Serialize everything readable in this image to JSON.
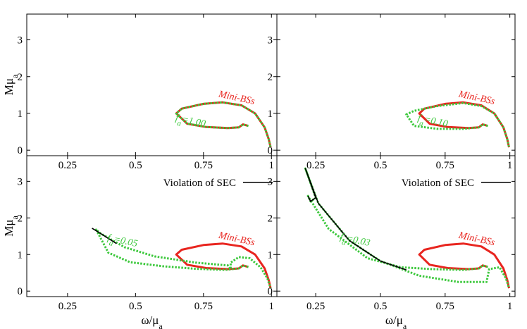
{
  "chart_data": {
    "type": "line",
    "panels": [
      {
        "id": "top-left",
        "xlabel": "",
        "ylabel": "Mμa",
        "xlim": [
          0.1,
          1.02
        ],
        "ylim": [
          -0.15,
          3.7
        ],
        "xticks": [
          "0.25",
          "0.5",
          "0.75",
          "1"
        ],
        "yticks": [
          "0",
          "1",
          "2",
          "3"
        ],
        "legend": {
          "label": "Violation of SEC",
          "color": "#000000"
        },
        "annotations": [
          {
            "text": "Mini-BSs",
            "color": "#e8251f"
          },
          {
            "text": "f",
            "sub": "a",
            "suffix": "=1.00",
            "color": "#3cc83c"
          }
        ],
        "series": [
          {
            "color": "#e8251f",
            "style": "solid",
            "points": [
              [
                0.915,
                0.66
              ],
              [
                0.895,
                0.7
              ],
              [
                0.88,
                0.62
              ],
              [
                0.84,
                0.6
              ],
              [
                0.76,
                0.63
              ],
              [
                0.69,
                0.72
              ],
              [
                0.65,
                1.0
              ],
              [
                0.67,
                1.13
              ],
              [
                0.75,
                1.26
              ],
              [
                0.82,
                1.3
              ],
              [
                0.89,
                1.22
              ],
              [
                0.94,
                1.0
              ],
              [
                0.975,
                0.62
              ],
              [
                0.99,
                0.3
              ],
              [
                0.997,
                0.08
              ]
            ]
          },
          {
            "color": "#3cc83c",
            "style": "dotted",
            "points": [
              [
                0.915,
                0.66
              ],
              [
                0.895,
                0.7
              ],
              [
                0.88,
                0.62
              ],
              [
                0.84,
                0.6
              ],
              [
                0.76,
                0.63
              ],
              [
                0.69,
                0.72
              ],
              [
                0.65,
                1.0
              ],
              [
                0.67,
                1.13
              ],
              [
                0.75,
                1.26
              ],
              [
                0.82,
                1.3
              ],
              [
                0.89,
                1.22
              ],
              [
                0.94,
                1.0
              ],
              [
                0.975,
                0.62
              ],
              [
                0.99,
                0.3
              ],
              [
                0.997,
                0.08
              ]
            ]
          }
        ]
      },
      {
        "id": "top-right",
        "xlabel": "",
        "ylabel": "",
        "xlim": [
          0.1,
          1.02
        ],
        "ylim": [
          -0.15,
          3.7
        ],
        "xticks": [
          "0.25",
          "0.5",
          "0.75",
          "1"
        ],
        "yticks": [
          "0",
          "1",
          "2",
          "3"
        ],
        "legend": {
          "label": "Violation of SEC",
          "color": "#000000"
        },
        "annotations": [
          {
            "text": "Mini-BSs",
            "color": "#e8251f"
          },
          {
            "text": "f",
            "sub": "a",
            "suffix": "=0.10",
            "color": "#3cc83c"
          }
        ],
        "series": [
          {
            "color": "#e8251f",
            "style": "solid",
            "points": [
              [
                0.915,
                0.66
              ],
              [
                0.895,
                0.7
              ],
              [
                0.88,
                0.62
              ],
              [
                0.84,
                0.6
              ],
              [
                0.76,
                0.63
              ],
              [
                0.69,
                0.72
              ],
              [
                0.65,
                1.0
              ],
              [
                0.67,
                1.13
              ],
              [
                0.75,
                1.26
              ],
              [
                0.82,
                1.3
              ],
              [
                0.89,
                1.22
              ],
              [
                0.94,
                1.0
              ],
              [
                0.975,
                0.62
              ],
              [
                0.99,
                0.3
              ],
              [
                0.997,
                0.08
              ]
            ]
          },
          {
            "color": "#3cc83c",
            "style": "dotted",
            "points": [
              [
                0.915,
                0.66
              ],
              [
                0.895,
                0.7
              ],
              [
                0.88,
                0.62
              ],
              [
                0.82,
                0.58
              ],
              [
                0.72,
                0.58
              ],
              [
                0.63,
                0.66
              ],
              [
                0.6,
                0.97
              ],
              [
                0.63,
                1.07
              ],
              [
                0.72,
                1.2
              ],
              [
                0.82,
                1.28
              ],
              [
                0.89,
                1.2
              ],
              [
                0.94,
                1.0
              ],
              [
                0.975,
                0.62
              ],
              [
                0.99,
                0.3
              ],
              [
                0.997,
                0.08
              ]
            ]
          }
        ]
      },
      {
        "id": "bottom-left",
        "xlabel": "ω/μa",
        "ylabel": "Mμa",
        "xlim": [
          0.1,
          1.02
        ],
        "ylim": [
          -0.15,
          3.7
        ],
        "xticks": [
          "0.25",
          "0.5",
          "0.75",
          "1"
        ],
        "yticks": [
          "0",
          "1",
          "2",
          "3"
        ],
        "annotations": [
          {
            "text": "Mini-BSs",
            "color": "#e8251f"
          },
          {
            "text": "f",
            "sub": "a",
            "suffix": "=0.05",
            "color": "#3cc83c"
          }
        ],
        "series": [
          {
            "color": "#e8251f",
            "style": "solid",
            "points": [
              [
                0.915,
                0.66
              ],
              [
                0.895,
                0.7
              ],
              [
                0.88,
                0.62
              ],
              [
                0.84,
                0.6
              ],
              [
                0.76,
                0.63
              ],
              [
                0.69,
                0.72
              ],
              [
                0.65,
                1.0
              ],
              [
                0.67,
                1.13
              ],
              [
                0.75,
                1.26
              ],
              [
                0.82,
                1.3
              ],
              [
                0.89,
                1.22
              ],
              [
                0.94,
                1.0
              ],
              [
                0.975,
                0.62
              ],
              [
                0.99,
                0.3
              ],
              [
                0.997,
                0.08
              ]
            ]
          },
          {
            "color": "#3cc83c",
            "style": "dotted",
            "points": [
              [
                0.915,
                0.66
              ],
              [
                0.895,
                0.7
              ],
              [
                0.88,
                0.62
              ],
              [
                0.83,
                0.58
              ],
              [
                0.72,
                0.61
              ],
              [
                0.6,
                0.68
              ],
              [
                0.48,
                0.79
              ],
              [
                0.4,
                1.05
              ],
              [
                0.355,
                1.68
              ],
              [
                0.37,
                1.58
              ],
              [
                0.46,
                1.2
              ],
              [
                0.57,
                0.95
              ],
              [
                0.72,
                0.78
              ],
              [
                0.84,
                0.7
              ],
              [
                0.85,
                0.6
              ],
              [
                0.85,
                0.78
              ],
              [
                0.88,
                0.93
              ],
              [
                0.92,
                0.9
              ],
              [
                0.96,
                0.65
              ],
              [
                0.985,
                0.35
              ],
              [
                0.997,
                0.08
              ]
            ]
          },
          {
            "color": "#000000",
            "style": "solid",
            "points": [
              [
                0.34,
                1.72
              ],
              [
                0.37,
                1.58
              ],
              [
                0.43,
                1.3
              ]
            ]
          }
        ]
      },
      {
        "id": "bottom-right",
        "xlabel": "ω/μa",
        "ylabel": "",
        "xlim": [
          0.1,
          1.02
        ],
        "ylim": [
          -0.15,
          3.7
        ],
        "xticks": [
          "0.25",
          "0.5",
          "0.75",
          "1"
        ],
        "yticks": [
          "0",
          "1",
          "2",
          "3"
        ],
        "annotations": [
          {
            "text": "Mini-BSs",
            "color": "#e8251f"
          },
          {
            "text": "f",
            "sub": "a",
            "suffix": "=0.03",
            "color": "#3cc83c"
          }
        ],
        "series": [
          {
            "color": "#e8251f",
            "style": "solid",
            "points": [
              [
                0.915,
                0.66
              ],
              [
                0.895,
                0.7
              ],
              [
                0.88,
                0.62
              ],
              [
                0.84,
                0.6
              ],
              [
                0.76,
                0.63
              ],
              [
                0.69,
                0.72
              ],
              [
                0.65,
                1.0
              ],
              [
                0.67,
                1.13
              ],
              [
                0.75,
                1.26
              ],
              [
                0.82,
                1.3
              ],
              [
                0.89,
                1.22
              ],
              [
                0.94,
                1.0
              ],
              [
                0.975,
                0.62
              ],
              [
                0.99,
                0.3
              ],
              [
                0.997,
                0.08
              ]
            ]
          },
          {
            "color": "#3cc83c",
            "style": "dotted",
            "points": [
              [
                0.915,
                0.66
              ],
              [
                0.895,
                0.7
              ],
              [
                0.88,
                0.62
              ],
              [
                0.82,
                0.58
              ],
              [
                0.7,
                0.6
              ],
              [
                0.58,
                0.65
              ],
              [
                0.45,
                0.9
              ],
              [
                0.3,
                1.7
              ],
              [
                0.22,
                2.6
              ],
              [
                0.23,
                2.45
              ],
              [
                0.25,
                2.55
              ],
              [
                0.21,
                3.35
              ],
              [
                0.26,
                2.4
              ],
              [
                0.38,
                1.38
              ],
              [
                0.5,
                0.82
              ],
              [
                0.65,
                0.42
              ],
              [
                0.8,
                0.25
              ],
              [
                0.91,
                0.25
              ],
              [
                0.92,
                0.6
              ],
              [
                0.96,
                0.65
              ],
              [
                0.985,
                0.35
              ],
              [
                0.997,
                0.08
              ]
            ]
          },
          {
            "color": "#000000",
            "style": "solid",
            "points": [
              [
                0.22,
                2.6
              ],
              [
                0.23,
                2.45
              ],
              [
                0.25,
                2.55
              ],
              [
                0.21,
                3.35
              ],
              [
                0.26,
                2.4
              ],
              [
                0.38,
                1.38
              ],
              [
                0.5,
                0.82
              ],
              [
                0.6,
                0.58
              ]
            ]
          }
        ]
      }
    ]
  }
}
